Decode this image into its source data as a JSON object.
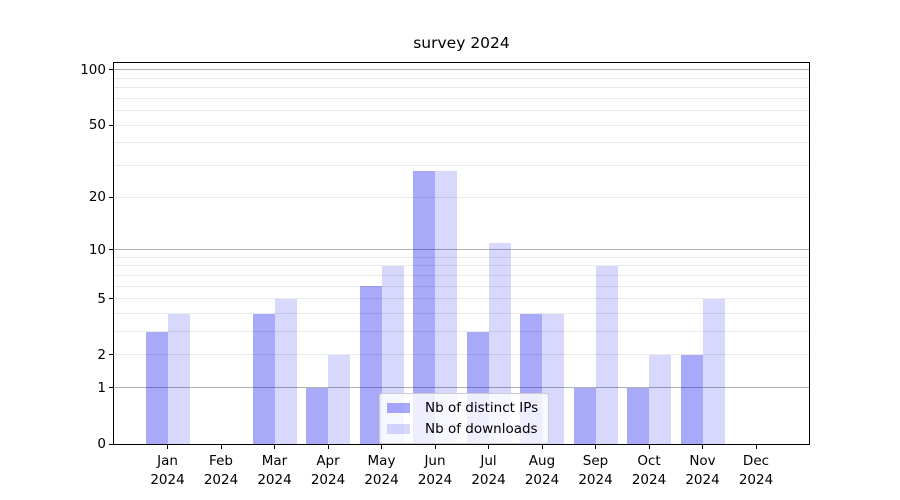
{
  "chart_data": {
    "type": "bar",
    "title": "survey 2024",
    "year": "2024",
    "months": [
      "Jan",
      "Feb",
      "Mar",
      "Apr",
      "May",
      "Jun",
      "Jul",
      "Aug",
      "Sep",
      "Oct",
      "Nov",
      "Dec"
    ],
    "categories": [
      "Jan 2024",
      "Feb 2024",
      "Mar 2024",
      "Apr 2024",
      "May 2024",
      "Jun 2024",
      "Jul 2024",
      "Aug 2024",
      "Sep 2024",
      "Oct 2024",
      "Nov 2024",
      "Dec 2024"
    ],
    "series": [
      {
        "name": "Nb of distinct IPs",
        "color": "rgba(10,10,240,0.35)",
        "values": [
          3,
          0,
          4,
          1,
          6,
          28,
          3,
          4,
          1,
          1,
          2,
          0
        ]
      },
      {
        "name": "Nb of downloads",
        "color": "rgba(10,10,240,0.16)",
        "values": [
          4,
          0,
          5,
          2,
          8,
          28,
          11,
          4,
          8,
          2,
          5,
          0
        ]
      }
    ],
    "xlabel": "",
    "ylabel": "",
    "yscale": "log(1+y)",
    "ylim": [
      0,
      112
    ],
    "yticks": [
      0,
      1,
      2,
      5,
      10,
      20,
      50,
      100
    ],
    "major_gridlines": [
      1,
      10,
      100
    ],
    "minor_gridlines": [
      2,
      3,
      4,
      5,
      6,
      7,
      8,
      9,
      20,
      30,
      40,
      50,
      60,
      70,
      80,
      90
    ],
    "grid": true,
    "legend_position": "lower center",
    "colors": {
      "grid_major": "#b0b0b0",
      "grid_minor": "#e8e8e8",
      "axis": "#000000",
      "legend_border": "#cccccc",
      "legend_bg": "rgba(255,255,255,0.8)"
    }
  }
}
